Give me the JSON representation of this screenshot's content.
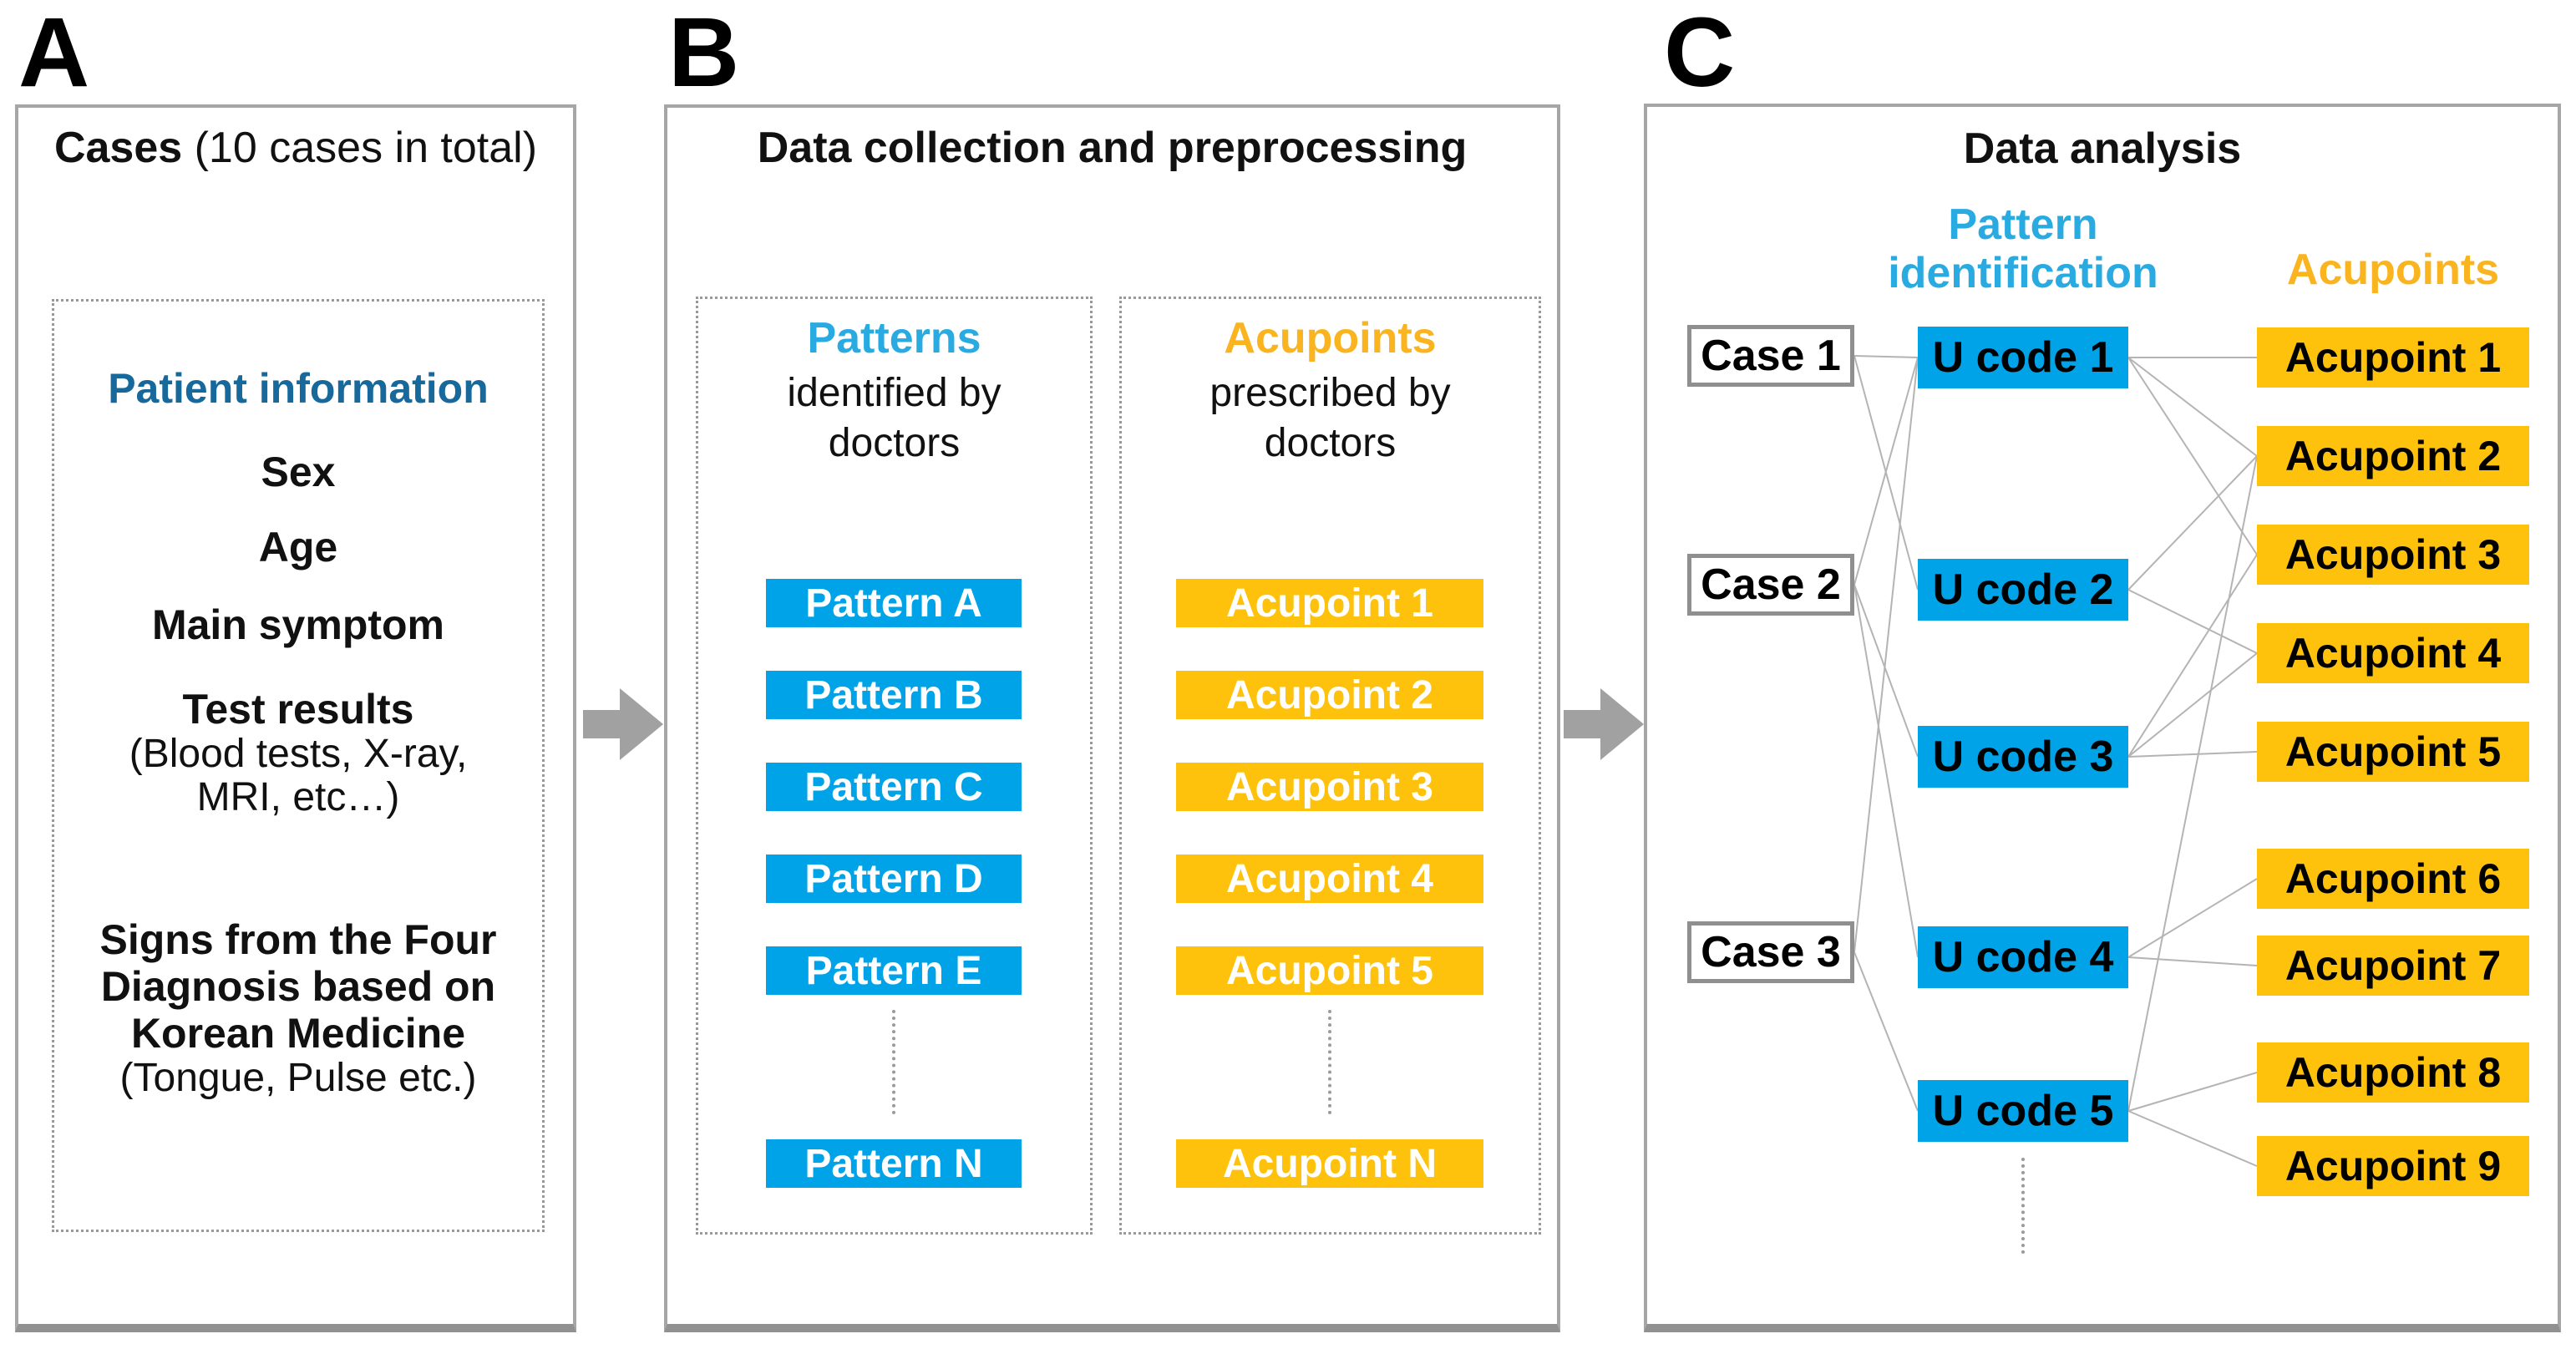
{
  "figure": {
    "panel_a_label": "A",
    "panel_b_label": "B",
    "panel_c_label": "C"
  },
  "colors": {
    "blue": "#00a3e8",
    "yellow": "#fec20d",
    "cyanHeader": "#29abe2",
    "yellowHeader": "#f9b41f",
    "infoBlue": "#17689b",
    "edgeLine": "#b4b4b4",
    "arrow": "#a1a1a1"
  },
  "icons": {
    "flow_arrow": "right-arrow",
    "ellipsis": "vertical-dotted-line"
  },
  "panelA": {
    "title_bold": "Cases",
    "title_rest": " (10 cases in total)",
    "info_heading": "Patient information",
    "items": [
      "Sex",
      "Age",
      "Main symptom"
    ],
    "test_results": {
      "title": "Test results",
      "detail": "(Blood tests, X-ray,\nMRI, etc…)"
    },
    "signs": {
      "title": "Signs from the Four\nDiagnosis based on\nKorean Medicine",
      "detail": "(Tongue, Pulse etc.)"
    }
  },
  "panelB": {
    "title": "Data collection and preprocessing",
    "patterns": {
      "header": "Patterns",
      "subheader": "identified by\ndoctors",
      "items": [
        "Pattern A",
        "Pattern B",
        "Pattern C",
        "Pattern D",
        "Pattern E"
      ],
      "last": "Pattern N"
    },
    "acupoints": {
      "header": "Acupoints",
      "subheader": "prescribed by\ndoctors",
      "items": [
        "Acupoint 1",
        "Acupoint 2",
        "Acupoint 3",
        "Acupoint 4",
        "Acupoint 5"
      ],
      "last": "Acupoint N"
    }
  },
  "panelC": {
    "title": "Data analysis",
    "pattern_header": "Pattern\nidentification",
    "acupoint_header": "Acupoints",
    "cases": [
      "Case 1",
      "Case 2",
      "Case 3"
    ],
    "ucodes": [
      "U code 1",
      "U code 2",
      "U code 3",
      "U code 4",
      "U code 5"
    ],
    "acupoints": [
      "Acupoint 1",
      "Acupoint 2",
      "Acupoint 3",
      "Acupoint 4",
      "Acupoint 5",
      "Acupoint 6",
      "Acupoint 7",
      "Acupoint 8",
      "Acupoint 9"
    ],
    "edges": {
      "case_to_ucode": [
        [
          1,
          1
        ],
        [
          1,
          2
        ],
        [
          2,
          1
        ],
        [
          2,
          3
        ],
        [
          2,
          4
        ],
        [
          3,
          1
        ],
        [
          3,
          5
        ]
      ],
      "ucode_to_acupoint": [
        [
          1,
          1
        ],
        [
          1,
          2
        ],
        [
          1,
          3
        ],
        [
          2,
          2
        ],
        [
          2,
          4
        ],
        [
          3,
          3
        ],
        [
          3,
          4
        ],
        [
          3,
          5
        ],
        [
          4,
          6
        ],
        [
          4,
          7
        ],
        [
          5,
          2
        ],
        [
          5,
          8
        ],
        [
          5,
          9
        ]
      ]
    }
  }
}
